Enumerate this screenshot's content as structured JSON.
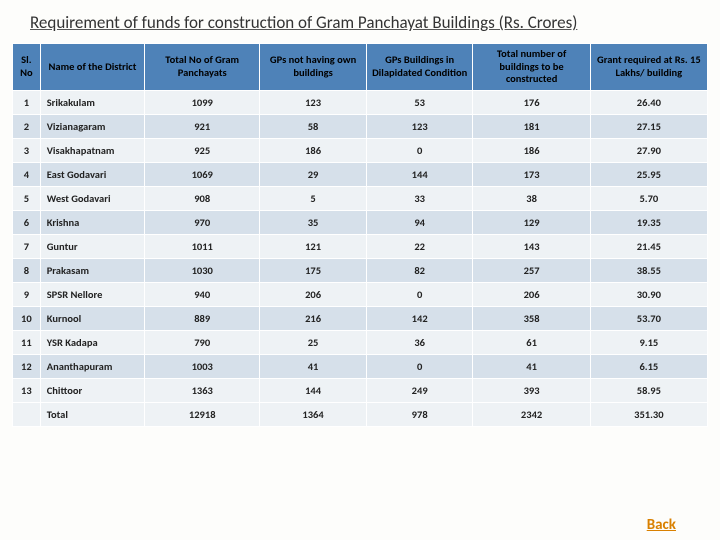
{
  "title": "Requirement of funds for construction of Gram Panchayat Buildings (Rs. Crores)",
  "columns": [
    "Sl. No",
    "Name of the District",
    "Total No of Gram Panchayats",
    "GPs not having own buildings",
    "GPs Buildings in Dilapidated Condition",
    "Total number of buildings to be constructed",
    "Grant required at Rs. 15 Lakhs/ building"
  ],
  "rows": [
    {
      "sl": "1",
      "name": "Srikakulam",
      "gp": "1099",
      "no_own": "123",
      "dilap": "53",
      "tot": "176",
      "grant": "26.40"
    },
    {
      "sl": "2",
      "name": "Vizianagaram",
      "gp": "921",
      "no_own": "58",
      "dilap": "123",
      "tot": "181",
      "grant": "27.15"
    },
    {
      "sl": "3",
      "name": "Visakhapatnam",
      "gp": "925",
      "no_own": "186",
      "dilap": "0",
      "tot": "186",
      "grant": "27.90"
    },
    {
      "sl": "4",
      "name": "East Godavari",
      "gp": "1069",
      "no_own": "29",
      "dilap": "144",
      "tot": "173",
      "grant": "25.95"
    },
    {
      "sl": "5",
      "name": "West Godavari",
      "gp": "908",
      "no_own": "5",
      "dilap": "33",
      "tot": "38",
      "grant": "5.70"
    },
    {
      "sl": "6",
      "name": "Krishna",
      "gp": "970",
      "no_own": "35",
      "dilap": "94",
      "tot": "129",
      "grant": "19.35"
    },
    {
      "sl": "7",
      "name": "Guntur",
      "gp": "1011",
      "no_own": "121",
      "dilap": "22",
      "tot": "143",
      "grant": "21.45"
    },
    {
      "sl": "8",
      "name": "Prakasam",
      "gp": "1030",
      "no_own": "175",
      "dilap": "82",
      "tot": "257",
      "grant": "38.55"
    },
    {
      "sl": "9",
      "name": "SPSR Nellore",
      "gp": "940",
      "no_own": "206",
      "dilap": "0",
      "tot": "206",
      "grant": "30.90"
    },
    {
      "sl": "10",
      "name": "Kurnool",
      "gp": "889",
      "no_own": "216",
      "dilap": "142",
      "tot": "358",
      "grant": "53.70"
    },
    {
      "sl": "11",
      "name": "YSR Kadapa",
      "gp": "790",
      "no_own": "25",
      "dilap": "36",
      "tot": "61",
      "grant": "9.15"
    },
    {
      "sl": "12",
      "name": "Ananthapuram",
      "gp": "1003",
      "no_own": "41",
      "dilap": "0",
      "tot": "41",
      "grant": "6.15"
    },
    {
      "sl": "13",
      "name": "Chittoor",
      "gp": "1363",
      "no_own": "144",
      "dilap": "249",
      "tot": "393",
      "grant": "58.95"
    }
  ],
  "total": {
    "name": "Total",
    "gp": "12918",
    "no_own": "1364",
    "dilap": "978",
    "tot": "2342",
    "grant": "351.30"
  },
  "back_label": "Back",
  "colors": {
    "header_bg": "#4e82b8",
    "row_odd": "#eef2f5",
    "row_even": "#d6e0ea",
    "link": "#d98000"
  }
}
